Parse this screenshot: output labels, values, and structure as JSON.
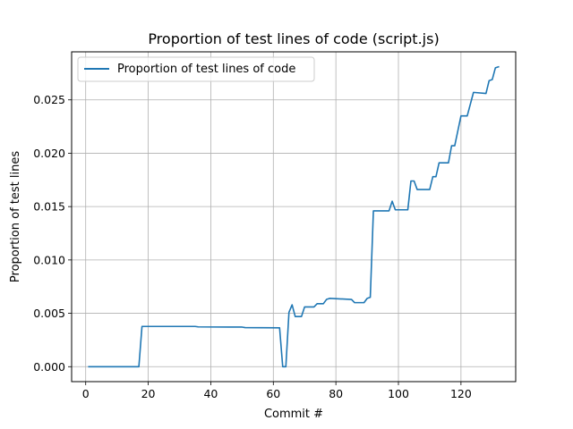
{
  "chart_data": {
    "type": "line",
    "title": "Proportion of test lines of code (script.js)",
    "xlabel": "Commit #",
    "ylabel": "Proportion of test lines",
    "xlim": [
      -4.5,
      137.5
    ],
    "ylim": [
      -0.0014,
      0.0295
    ],
    "xticks": [
      {
        "value": 0,
        "label": "0"
      },
      {
        "value": 20,
        "label": "20"
      },
      {
        "value": 40,
        "label": "40"
      },
      {
        "value": 60,
        "label": "60"
      },
      {
        "value": 80,
        "label": "80"
      },
      {
        "value": 100,
        "label": "100"
      },
      {
        "value": 120,
        "label": "120"
      }
    ],
    "yticks": [
      {
        "value": 0.0,
        "label": "0.000"
      },
      {
        "value": 0.005,
        "label": "0.005"
      },
      {
        "value": 0.01,
        "label": "0.010"
      },
      {
        "value": 0.015,
        "label": "0.015"
      },
      {
        "value": 0.02,
        "label": "0.020"
      },
      {
        "value": 0.025,
        "label": "0.025"
      }
    ],
    "grid": true,
    "legend_position": "upper-left",
    "series": [
      {
        "name": "Proportion of test lines of code",
        "color": "#1f77b4",
        "x": [
          1,
          17,
          18,
          35,
          36,
          50,
          51,
          62,
          63,
          64,
          65,
          66,
          67,
          69,
          70,
          73,
          74,
          76,
          77,
          78,
          85,
          86,
          89,
          90,
          91,
          92,
          97,
          98,
          99,
          103,
          104,
          105,
          106,
          110,
          111,
          112,
          113,
          116,
          117,
          118,
          119,
          120,
          122,
          124,
          128,
          129,
          130,
          131,
          132
        ],
        "y": [
          0.0,
          0.0,
          0.00377,
          0.00377,
          0.00373,
          0.00371,
          0.00366,
          0.00364,
          0.0,
          0.0,
          0.0051,
          0.0058,
          0.0047,
          0.0047,
          0.0056,
          0.0056,
          0.0059,
          0.0059,
          0.0063,
          0.0064,
          0.0063,
          0.006,
          0.006,
          0.0064,
          0.0065,
          0.0146,
          0.0146,
          0.0155,
          0.0147,
          0.0147,
          0.0174,
          0.0174,
          0.0166,
          0.0166,
          0.0178,
          0.0178,
          0.0191,
          0.0191,
          0.0207,
          0.0207,
          0.0221,
          0.0235,
          0.0235,
          0.0257,
          0.0256,
          0.0268,
          0.0269,
          0.028,
          0.0281
        ]
      }
    ]
  }
}
